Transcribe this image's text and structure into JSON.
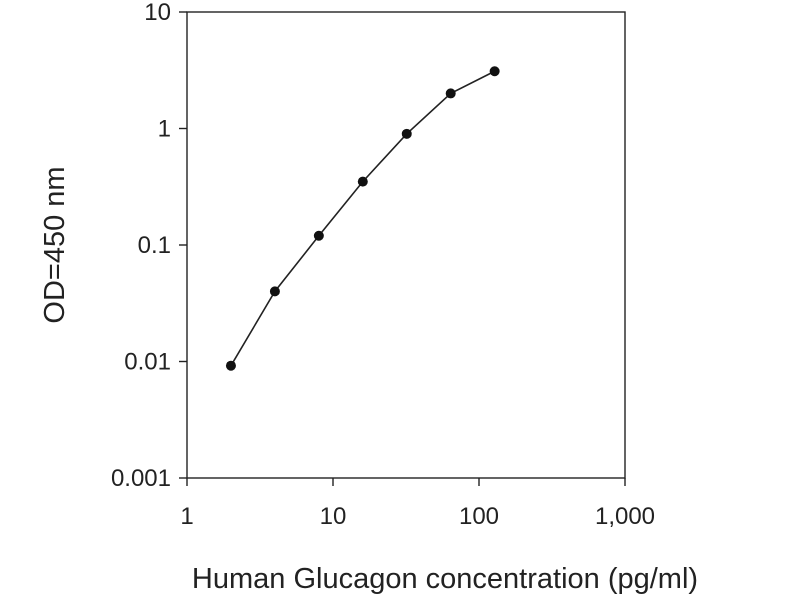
{
  "chart_data": {
    "type": "line",
    "xlabel": "Human Glucagon concentration (pg/ml)",
    "ylabel": "OD=450 nm",
    "x_scale": "log",
    "y_scale": "log",
    "xlim": [
      1,
      1000
    ],
    "ylim": [
      0.001,
      10
    ],
    "x_ticks": [
      1,
      10,
      100,
      1000
    ],
    "x_tick_labels": [
      "1",
      "10",
      "100",
      "1,000"
    ],
    "y_ticks": [
      0.001,
      0.01,
      0.1,
      1,
      10
    ],
    "y_tick_labels": [
      "0.001",
      "0.01",
      "0.1",
      "1",
      "10"
    ],
    "grid": false,
    "legend": false,
    "series": [
      {
        "x": [
          2,
          4,
          8,
          16,
          32,
          64,
          128
        ],
        "y": [
          0.0092,
          0.04,
          0.12,
          0.35,
          0.9,
          2.0,
          3.1
        ]
      }
    ],
    "colors": {
      "line": "#222222",
      "marker": "#111111",
      "axis": "#222222"
    }
  }
}
